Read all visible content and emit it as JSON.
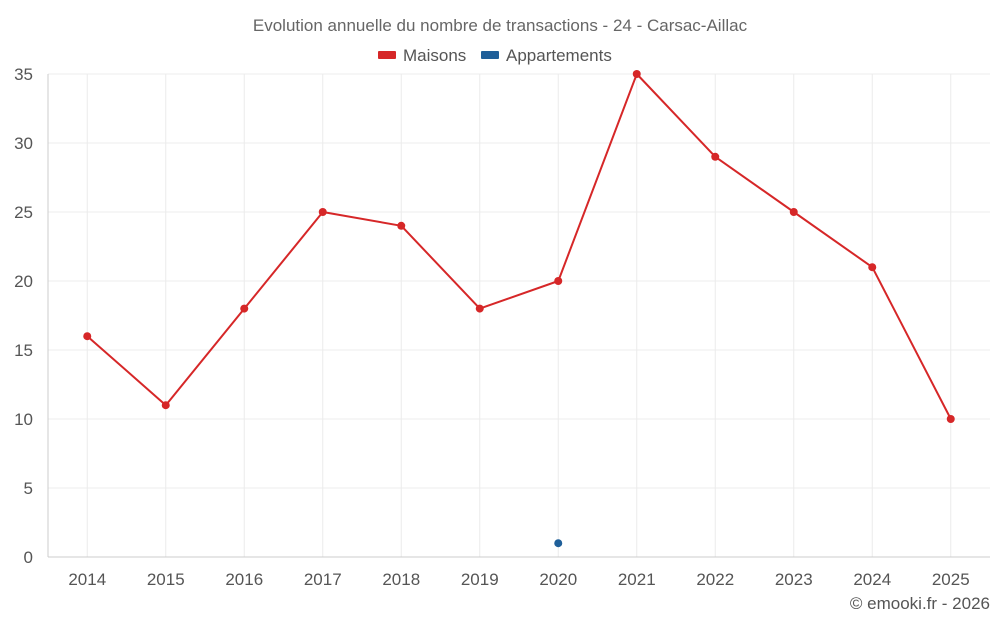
{
  "chart_data": {
    "type": "line",
    "title": "Evolution annuelle du nombre de transactions - 24 - Carsac-Aillac",
    "xlabel": "",
    "ylabel": "",
    "categories": [
      "2014",
      "2015",
      "2016",
      "2017",
      "2018",
      "2019",
      "2020",
      "2021",
      "2022",
      "2023",
      "2024",
      "2025"
    ],
    "ylim": [
      0,
      35
    ],
    "yticks": [
      0,
      5,
      10,
      15,
      20,
      25,
      30,
      35
    ],
    "grid": true,
    "legend_position": "top-center",
    "series": [
      {
        "name": "Maisons",
        "color": "#d62728",
        "values": [
          16,
          11,
          18,
          25,
          24,
          18,
          20,
          35,
          29,
          25,
          21,
          10
        ]
      },
      {
        "name": "Appartements",
        "color": "#1f5f99",
        "values": [
          null,
          null,
          null,
          null,
          null,
          null,
          1,
          null,
          null,
          null,
          null,
          null
        ]
      }
    ]
  },
  "credit": "© emooki.fr - 2026"
}
